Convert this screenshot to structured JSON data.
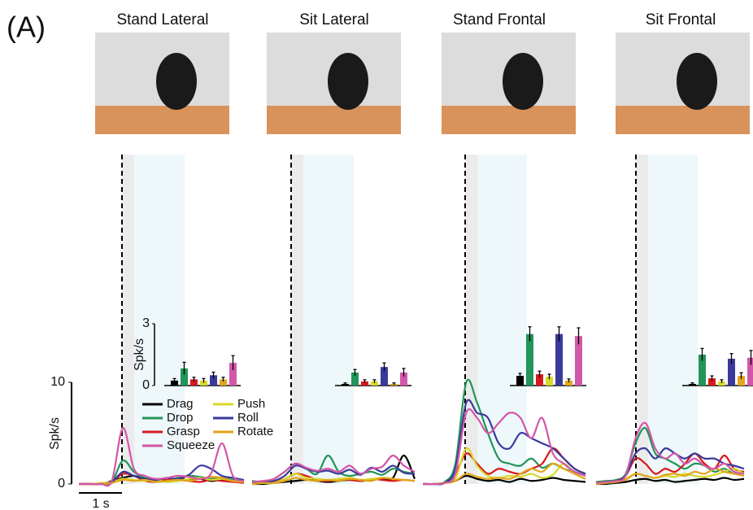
{
  "panel_label": "(A)",
  "scale_bar": {
    "label": "1 s"
  },
  "chart_data": [
    {
      "type": "line",
      "title": "Stand Lateral",
      "ylabel": "Spk/s",
      "ylim": [
        0,
        10
      ],
      "yticks": [
        0,
        10
      ],
      "series": [
        {
          "name": "Drag",
          "color": "#000000",
          "values": [
            0,
            0,
            0,
            0.3,
            0.6,
            0.8,
            0.5,
            0.4,
            0.3,
            0.5,
            0.4,
            0.5,
            0.3,
            0.4,
            0.3,
            0.2
          ]
        },
        {
          "name": "Drop",
          "color": "#22955a",
          "values": [
            0,
            0,
            0,
            0.2,
            2.3,
            1.2,
            0.6,
            0.5,
            0.4,
            0.6,
            0.8,
            0.7,
            0.5,
            0.6,
            0.4,
            0.3
          ]
        },
        {
          "name": "Grasp",
          "color": "#d7191c",
          "values": [
            0,
            0,
            0,
            0.2,
            1.0,
            0.8,
            0.3,
            0.2,
            0.4,
            0.5,
            0.3,
            0.2,
            0.4,
            0.3,
            0.2,
            0.1
          ]
        },
        {
          "name": "Push",
          "color": "#d8d82a",
          "values": [
            0,
            0,
            0.1,
            0.2,
            0.5,
            0.4,
            0.3,
            0.4,
            0.2,
            0.3,
            0.5,
            0.6,
            0.4,
            0.5,
            0.3,
            0.2
          ]
        },
        {
          "name": "Roll",
          "color": "#3a3a9c",
          "values": [
            0,
            0,
            0,
            0.2,
            1.2,
            0.8,
            0.5,
            0.4,
            0.6,
            0.5,
            0.9,
            1.8,
            1.5,
            0.8,
            0.6,
            0.4
          ]
        },
        {
          "name": "Rotate",
          "color": "#e3a51b",
          "values": [
            0,
            0,
            0,
            0.1,
            0.4,
            0.3,
            0.4,
            0.2,
            0.3,
            0.4,
            0.3,
            0.5,
            0.7,
            0.6,
            0.3,
            0.2
          ]
        },
        {
          "name": "Squeeze",
          "color": "#d357a8",
          "values": [
            0,
            0,
            0,
            0.3,
            5.5,
            1.5,
            0.8,
            0.5,
            0.6,
            0.8,
            0.7,
            0.5,
            1.0,
            4.0,
            0.8,
            0.3
          ]
        }
      ],
      "inset": {
        "type": "bar",
        "ylabel": "Spk/s",
        "ylim": [
          0,
          3
        ],
        "yticks": [
          0,
          3
        ],
        "values": [
          0.24,
          0.83,
          0.3,
          0.24,
          0.5,
          0.3,
          1.1
        ],
        "errors": [
          0.1,
          0.3,
          0.1,
          0.1,
          0.15,
          0.1,
          0.35
        ]
      }
    },
    {
      "type": "line",
      "title": "Sit Lateral",
      "ylim": [
        0,
        10
      ],
      "series": [
        {
          "color": "#000000",
          "values": [
            0,
            0,
            0.1,
            0.2,
            0.3,
            0.4,
            0.3,
            0.2,
            0.3,
            0.4,
            0.3,
            0.4,
            0.5,
            0.6,
            2.8,
            0.5
          ]
        },
        {
          "color": "#22955a",
          "values": [
            0.3,
            0.2,
            0.5,
            1.2,
            2.0,
            1.5,
            1.0,
            2.8,
            1.2,
            0.8,
            1.0,
            1.2,
            0.9,
            1.5,
            1.2,
            1.0
          ]
        },
        {
          "color": "#d7191c",
          "values": [
            0,
            0.1,
            0.2,
            0.5,
            1.0,
            0.8,
            0.4,
            0.3,
            0.5,
            0.4,
            0.3,
            0.5,
            0.4,
            0.3,
            0.4,
            0.3
          ]
        },
        {
          "color": "#d8d82a",
          "values": [
            0,
            0.1,
            0.1,
            0.5,
            1.0,
            0.6,
            0.5,
            0.4,
            0.5,
            0.6,
            0.4,
            0.5,
            0.6,
            0.5,
            0.4,
            0.3
          ]
        },
        {
          "color": "#3a3a9c",
          "values": [
            0.1,
            0.2,
            0.3,
            0.8,
            1.8,
            1.5,
            1.2,
            1.3,
            1.0,
            1.4,
            0.9,
            1.6,
            1.2,
            1.8,
            1.1,
            1.0
          ]
        },
        {
          "color": "#e3a51b",
          "values": [
            0,
            0.1,
            0.1,
            0.3,
            0.6,
            0.4,
            0.3,
            0.4,
            0.3,
            0.5,
            0.4,
            0.3,
            0.6,
            0.5,
            0.4,
            0.3
          ]
        },
        {
          "color": "#d357a8",
          "values": [
            0.2,
            0.3,
            0.5,
            1.2,
            2.0,
            1.6,
            1.3,
            1.5,
            1.2,
            1.8,
            1.0,
            1.5,
            1.7,
            2.8,
            1.8,
            1.2
          ]
        }
      ],
      "inset": {
        "type": "bar",
        "ylim": [
          0,
          3
        ],
        "values": [
          0.08,
          0.63,
          0.2,
          0.2,
          0.9,
          0.08,
          0.63
        ],
        "errors": [
          0.05,
          0.15,
          0.08,
          0.08,
          0.2,
          0.05,
          0.2
        ]
      }
    },
    {
      "type": "line",
      "title": "Stand Frontal",
      "ylim": [
        0,
        10
      ],
      "series": [
        {
          "color": "#000000",
          "values": [
            0,
            0,
            0.1,
            0.3,
            0.8,
            0.5,
            0.3,
            0.4,
            0.2,
            0.5,
            0.3,
            0.4,
            0.6,
            0.4,
            0.3,
            0.2
          ]
        },
        {
          "color": "#22955a",
          "values": [
            0,
            0,
            0.2,
            2.0,
            10.0,
            8.0,
            5.0,
            2.5,
            2.0,
            1.8,
            2.5,
            1.6,
            2.0,
            1.5,
            1.2,
            0.8
          ]
        },
        {
          "color": "#d7191c",
          "values": [
            0,
            0,
            0.1,
            1.0,
            3.0,
            2.0,
            1.0,
            1.5,
            1.2,
            1.0,
            1.5,
            2.0,
            3.5,
            2.5,
            1.5,
            1.0
          ]
        },
        {
          "color": "#d8d82a",
          "values": [
            0,
            0,
            0.1,
            0.5,
            3.5,
            1.8,
            0.8,
            0.6,
            0.8,
            0.7,
            1.0,
            0.6,
            0.9,
            2.0,
            1.0,
            0.5
          ]
        },
        {
          "color": "#3a3a9c",
          "values": [
            0,
            0,
            0.1,
            1.5,
            8.0,
            7.0,
            6.5,
            4.0,
            3.5,
            5.0,
            4.5,
            4.0,
            3.5,
            2.5,
            1.5,
            1.0
          ]
        },
        {
          "color": "#e3a51b",
          "values": [
            0,
            0,
            0.1,
            0.3,
            1.0,
            0.7,
            0.5,
            0.6,
            0.5,
            1.0,
            1.5,
            1.2,
            2.0,
            1.5,
            1.0,
            0.5
          ]
        },
        {
          "color": "#d357a8",
          "values": [
            0,
            0,
            0.1,
            1.0,
            7.0,
            6.5,
            5.0,
            6.0,
            7.0,
            6.5,
            4.5,
            6.5,
            3.0,
            2.0,
            1.2,
            0.8
          ]
        }
      ],
      "inset": {
        "type": "bar",
        "ylim": [
          0,
          3
        ],
        "values": [
          0.47,
          2.5,
          0.55,
          0.43,
          2.5,
          0.24,
          2.4
        ],
        "errors": [
          0.12,
          0.35,
          0.15,
          0.12,
          0.35,
          0.08,
          0.4
        ]
      }
    },
    {
      "type": "line",
      "title": "Sit Frontal",
      "ylim": [
        0,
        10
      ],
      "series": [
        {
          "color": "#000000",
          "values": [
            0,
            0,
            0.1,
            0.2,
            0.4,
            0.5,
            0.3,
            0.4,
            0.2,
            0.3,
            0.4,
            0.5,
            0.4,
            0.6,
            0.4,
            0.5
          ]
        },
        {
          "color": "#22955a",
          "values": [
            0.2,
            0.3,
            0.4,
            1.0,
            4.0,
            5.5,
            3.0,
            2.5,
            2.0,
            1.5,
            2.0,
            1.8,
            1.2,
            1.5,
            1.0,
            1.2
          ]
        },
        {
          "color": "#d7191c",
          "values": [
            0.1,
            0.2,
            0.3,
            0.8,
            2.5,
            2.0,
            1.0,
            1.5,
            1.2,
            2.0,
            3.0,
            2.0,
            1.5,
            2.8,
            1.5,
            1.2
          ]
        },
        {
          "color": "#d8d82a",
          "values": [
            0,
            0.1,
            0.2,
            0.5,
            1.0,
            0.8,
            0.6,
            0.8,
            0.7,
            1.0,
            0.8,
            0.7,
            0.9,
            1.2,
            1.5,
            1.0
          ]
        },
        {
          "color": "#3a3a9c",
          "values": [
            0.1,
            0.2,
            0.3,
            0.8,
            3.0,
            3.5,
            2.5,
            3.5,
            3.0,
            2.5,
            3.0,
            2.5,
            2.5,
            2.0,
            1.8,
            1.5
          ]
        },
        {
          "color": "#e3a51b",
          "values": [
            0,
            0.1,
            0.2,
            0.4,
            1.0,
            0.8,
            0.6,
            0.9,
            1.0,
            0.8,
            1.2,
            1.0,
            1.5,
            1.2,
            1.0,
            0.8
          ]
        },
        {
          "color": "#d357a8",
          "values": [
            0.1,
            0.2,
            0.3,
            0.8,
            4.5,
            6.0,
            3.5,
            2.5,
            3.0,
            2.0,
            2.5,
            1.8,
            1.5,
            2.0,
            1.2,
            1.0
          ]
        }
      ],
      "inset": {
        "type": "bar",
        "ylim": [
          0,
          3
        ],
        "values": [
          0.08,
          1.5,
          0.35,
          0.2,
          1.3,
          0.47,
          1.35
        ],
        "errors": [
          0.05,
          0.3,
          0.12,
          0.08,
          0.25,
          0.15,
          0.35
        ]
      }
    }
  ]
}
